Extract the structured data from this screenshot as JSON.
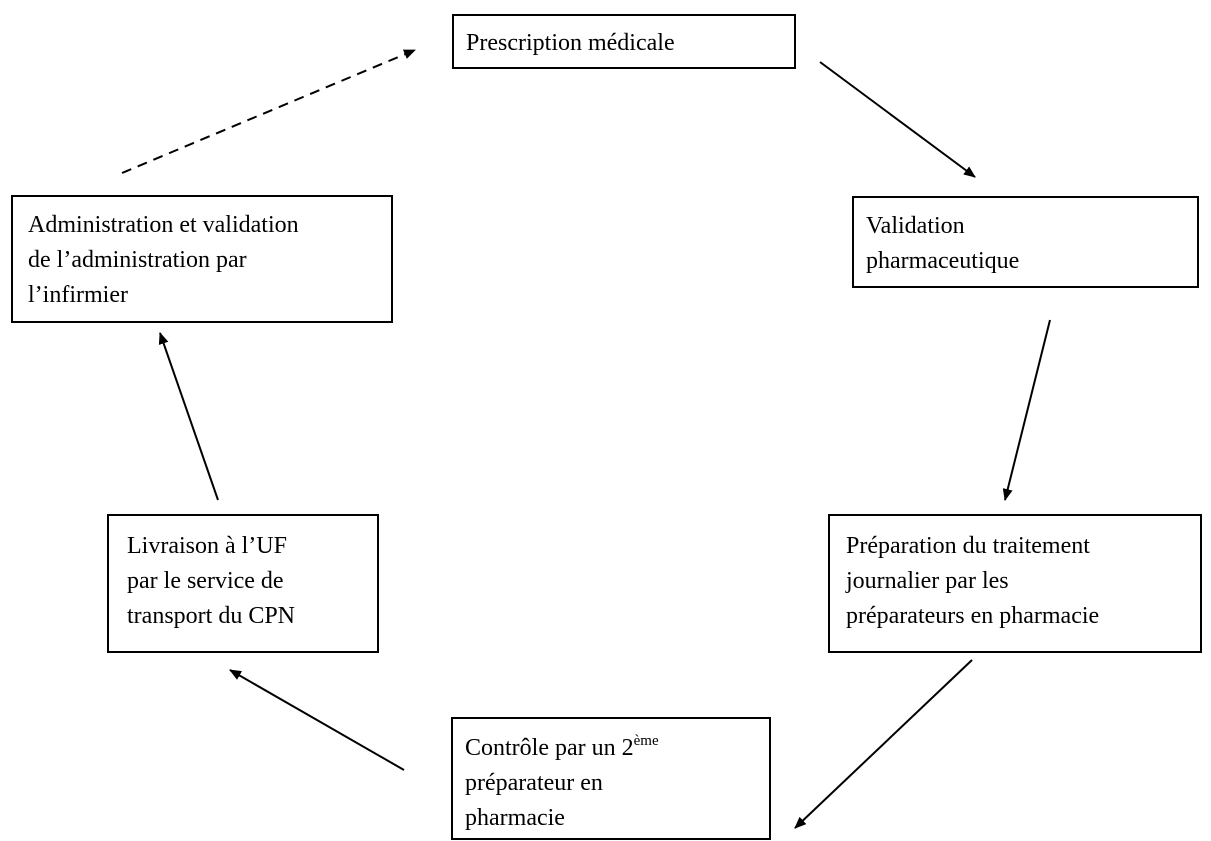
{
  "nodes": [
    {
      "lines": [
        "Prescription médicale"
      ]
    },
    {
      "lines": [
        "Validation",
        "pharmaceutique"
      ]
    },
    {
      "lines": [
        "Préparation du traitement",
        "journalier par les",
        "préparateurs en pharmacie"
      ]
    },
    {
      "lines": [
        {
          "text": "Contrôle par un 2",
          "sup": "ème"
        },
        "préparateur en",
        "pharmacie"
      ]
    },
    {
      "lines": [
        "Livraison à l’UF",
        "par le service de",
        "transport du CPN"
      ]
    },
    {
      "lines": [
        "Administration et validation",
        "de l’administration par",
        "l’infirmier"
      ]
    }
  ]
}
